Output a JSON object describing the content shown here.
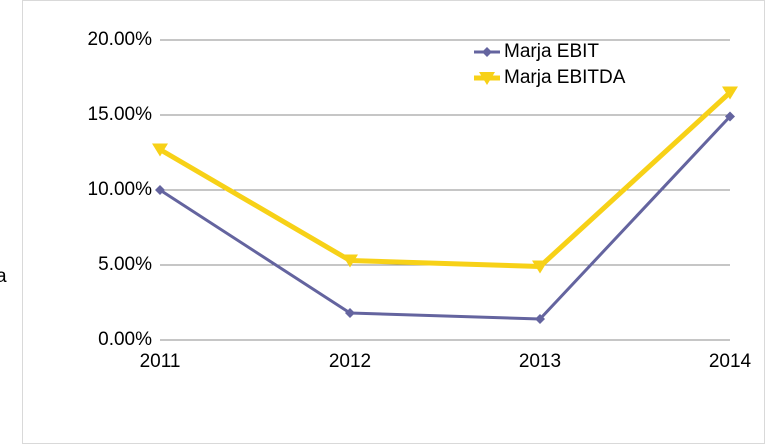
{
  "chart_data": {
    "type": "line",
    "annotation": "a",
    "categories": [
      "2011",
      "2012",
      "2013",
      "2014"
    ],
    "series": [
      {
        "name": "Marja EBIT",
        "color": "#64649f",
        "marker": "diamond",
        "values": [
          10.0,
          1.8,
          1.4,
          14.9
        ]
      },
      {
        "name": "Marja EBITDA",
        "color": "#f7d117",
        "marker": "triangle-down",
        "values": [
          12.7,
          5.3,
          4.9,
          16.5
        ]
      }
    ],
    "ylim": [
      0,
      20
    ],
    "yticks": [
      {
        "value": 0,
        "label": "0.00%"
      },
      {
        "value": 5,
        "label": "5.00%"
      },
      {
        "value": 10,
        "label": "10.00%"
      },
      {
        "value": 15,
        "label": "15.00%"
      },
      {
        "value": 20,
        "label": "20.00%"
      }
    ],
    "grid": true,
    "legend": "upper right"
  }
}
